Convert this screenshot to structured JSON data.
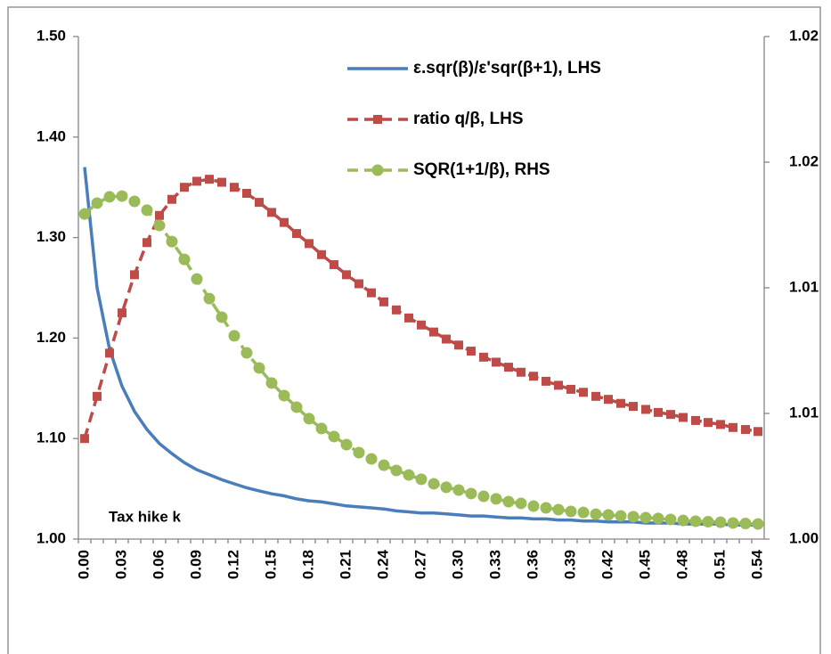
{
  "chart_data": {
    "type": "line",
    "annotation": "Tax hike k",
    "categories": [
      "0.00",
      null,
      null,
      "0.03",
      null,
      null,
      "0.06",
      null,
      null,
      "0.09",
      null,
      null,
      "0.12",
      null,
      null,
      "0.15",
      null,
      null,
      "0.18",
      null,
      null,
      "0.21",
      null,
      null,
      "0.24",
      null,
      null,
      "0.27",
      null,
      null,
      "0.30",
      null,
      null,
      "0.33",
      null,
      null,
      "0.36",
      null,
      null,
      "0.39",
      null,
      null,
      "0.42",
      null,
      null,
      "0.45",
      null,
      null,
      "0.48",
      null,
      null,
      "0.51",
      null,
      null,
      "0.54"
    ],
    "ylim": [
      1.0,
      1.5
    ],
    "yticks": [
      {
        "value": 1.0,
        "label": "1.00"
      },
      {
        "value": 1.1,
        "label": "1.10"
      },
      {
        "value": 1.2,
        "label": "1.20"
      },
      {
        "value": 1.3,
        "label": "1.30"
      },
      {
        "value": 1.4,
        "label": "1.40"
      },
      {
        "value": 1.5,
        "label": "1.50"
      }
    ],
    "y2lim": [
      1.0,
      1.02
    ],
    "y2ticks": [
      {
        "value": 1.0,
        "label": "1.00"
      },
      {
        "value": 1.005,
        "label": "1.01"
      },
      1.01,
      {
        "value": 1.015,
        "label": "1.02"
      },
      1.02
    ],
    "grid": false,
    "legend": "top-right",
    "series": [
      {
        "name": "ε.sqr(β)/ε'sqr(β+1), LHS",
        "color": "#4a7ebb",
        "dash": false,
        "marker": "none",
        "values": [
          1.37,
          1.25,
          1.189,
          1.152,
          1.127,
          1.109,
          1.095,
          1.085,
          1.076,
          1.069,
          1.064,
          1.059,
          1.055,
          1.051,
          1.048,
          1.045,
          1.043,
          1.04,
          1.038,
          1.037,
          1.035,
          1.033,
          1.032,
          1.031,
          1.03,
          1.028,
          1.027,
          1.026,
          1.026,
          1.025,
          1.024,
          1.023,
          1.023,
          1.022,
          1.021,
          1.021,
          1.02,
          1.02,
          1.019,
          1.019,
          1.018,
          1.018,
          1.017,
          1.017,
          1.017,
          1.016,
          1.016,
          1.016,
          1.015,
          1.015,
          1.015,
          1.015,
          1.014,
          1.014,
          1.014
        ]
      },
      {
        "name": "ratio q/β, LHS",
        "color": "#be4b48",
        "dash": true,
        "marker": "square",
        "values": [
          1.1,
          1.142,
          1.185,
          1.225,
          1.263,
          1.295,
          1.322,
          1.338,
          1.35,
          1.356,
          1.358,
          1.355,
          1.35,
          1.344,
          1.335,
          1.325,
          1.315,
          1.304,
          1.294,
          1.283,
          1.273,
          1.263,
          1.254,
          1.245,
          1.236,
          1.228,
          1.22,
          1.213,
          1.206,
          1.199,
          1.193,
          1.187,
          1.181,
          1.176,
          1.171,
          1.166,
          1.162,
          1.157,
          1.153,
          1.149,
          1.146,
          1.142,
          1.139,
          1.135,
          1.132,
          1.129,
          1.126,
          1.124,
          1.121,
          1.118,
          1.116,
          1.114,
          1.111,
          1.109,
          1.107
        ]
      },
      {
        "name": "SQR(1+1/β), RHS",
        "color": "#9bbb59",
        "dash": true,
        "marker": "circle",
        "axis": "y2",
        "values": [
          1.01294,
          1.01337,
          1.01362,
          1.01365,
          1.01344,
          1.01309,
          1.01248,
          1.01184,
          1.01113,
          1.01035,
          1.00957,
          1.00883,
          1.00809,
          1.00741,
          1.00681,
          1.00621,
          1.00571,
          1.00525,
          1.00479,
          1.0044,
          1.00408,
          1.00376,
          1.00344,
          1.00319,
          1.00294,
          1.00273,
          1.00255,
          1.00238,
          1.0022,
          1.00206,
          1.00195,
          1.00181,
          1.0017,
          1.0016,
          1.00149,
          1.00142,
          1.00131,
          1.00124,
          1.00117,
          1.0011,
          1.00106,
          1.00099,
          1.00096,
          1.00092,
          1.00089,
          1.00085,
          1.00082,
          1.00078,
          1.00074,
          1.00071,
          1.00069,
          1.00067,
          1.00064,
          1.00062,
          1.0006
        ]
      }
    ]
  }
}
